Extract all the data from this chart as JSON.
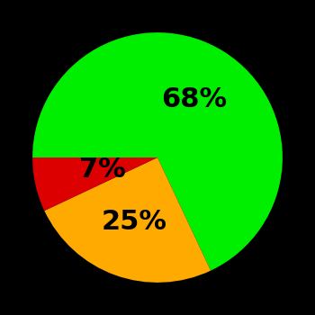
{
  "slices": [
    68,
    25,
    7
  ],
  "colors": [
    "#00ee00",
    "#ffaa00",
    "#dd0000"
  ],
  "labels": [
    "68%",
    "25%",
    "7%"
  ],
  "background_color": "#000000",
  "startangle": 180,
  "label_fontsize": 22,
  "label_fontweight": "bold",
  "label_radii": [
    0.55,
    0.55,
    0.45
  ]
}
